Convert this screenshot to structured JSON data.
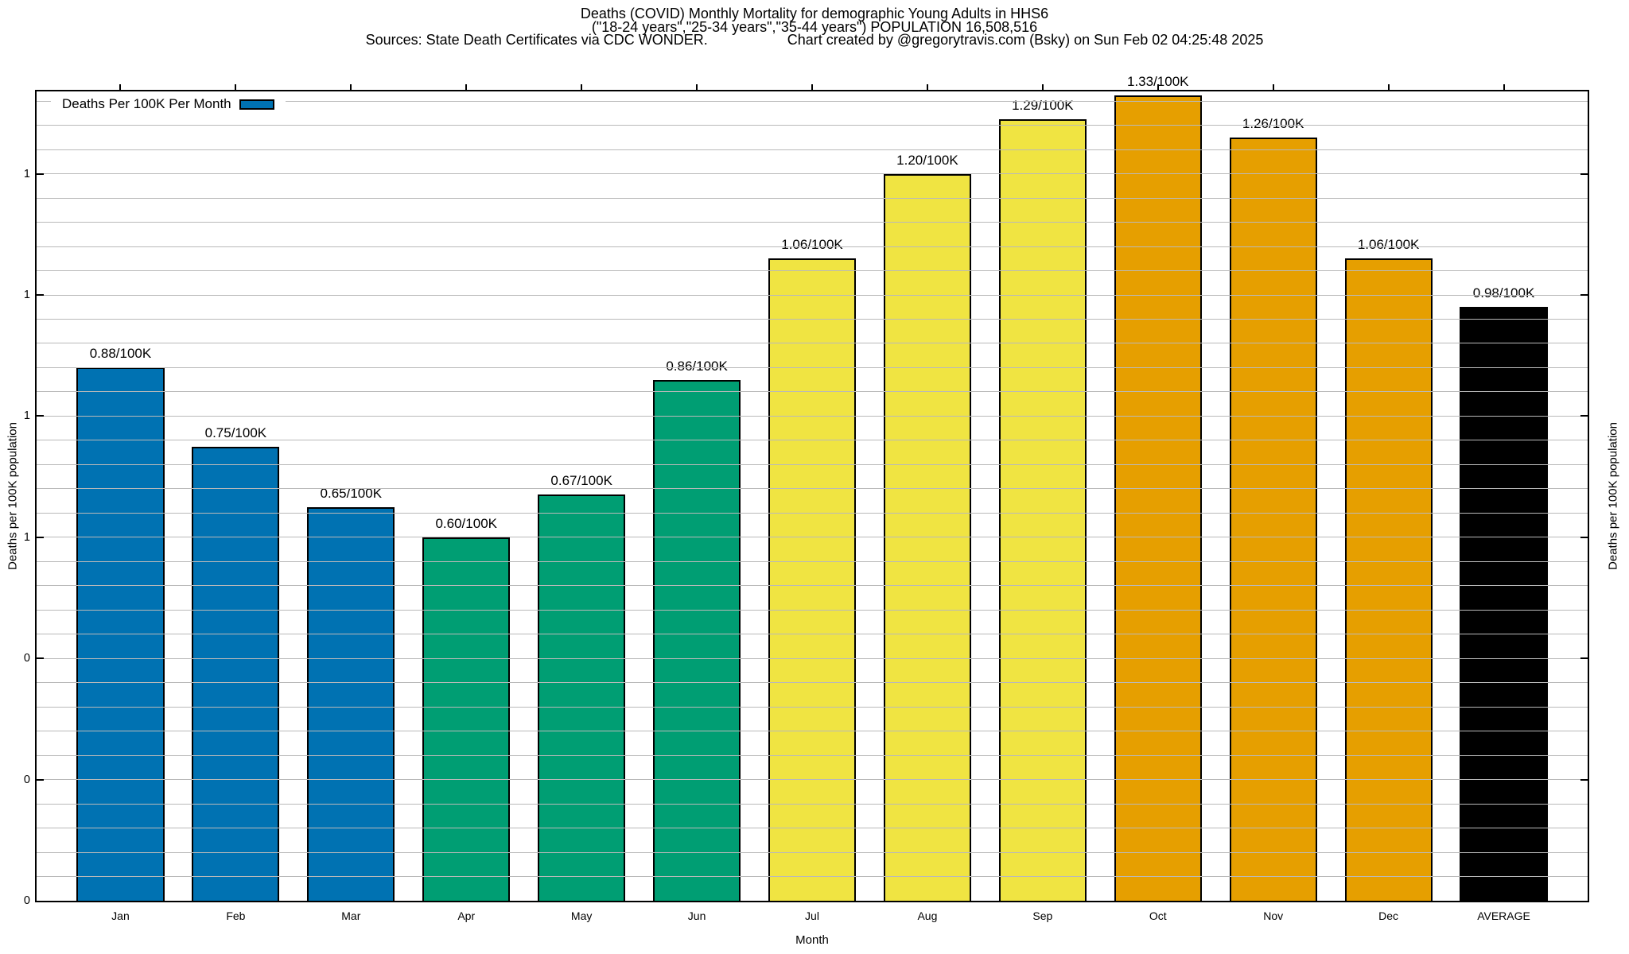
{
  "header": {
    "title_line1": "Deaths (COVID) Monthly Mortality for demographic Young Adults in HHS6",
    "title_line2": "(\"18-24 years\",\"25-34 years\",\"35-44 years\") POPULATION 16,508,516",
    "sources": "Sources: State Death Certificates via CDC WONDER.",
    "credit": "Chart created by @gregorytravis.com (Bsky) on Sun Feb 02 04:25:48 2025"
  },
  "legend": {
    "label": "Deaths Per 100K Per Month",
    "swatch_color": "#0072B2"
  },
  "axis": {
    "xlabel": "Month",
    "ylabel_left": "Deaths per 100K population",
    "ylabel_right": "Deaths per 100K population",
    "y_max": 1.336,
    "y_minor_step": 0.04,
    "y_major_step": 0.2,
    "grid_color": "#b9b9b9",
    "y_tick_labels": [
      {
        "value": 0.0,
        "label": "0"
      },
      {
        "value": 0.2,
        "label": "0"
      },
      {
        "value": 0.4,
        "label": "0"
      },
      {
        "value": 0.6,
        "label": "1"
      },
      {
        "value": 0.8,
        "label": "1"
      },
      {
        "value": 1.0,
        "label": "1"
      },
      {
        "value": 1.2,
        "label": "1"
      }
    ]
  },
  "palette": {
    "blue": "#0072B2",
    "green": "#009E73",
    "yellow": "#F0E442",
    "orange": "#E69F00",
    "black": "#000000"
  },
  "bars": [
    {
      "month": "Jan",
      "value": 0.88,
      "label": "0.88/100K",
      "color": "#0072B2"
    },
    {
      "month": "Feb",
      "value": 0.75,
      "label": "0.75/100K",
      "color": "#0072B2"
    },
    {
      "month": "Mar",
      "value": 0.65,
      "label": "0.65/100K",
      "color": "#0072B2"
    },
    {
      "month": "Apr",
      "value": 0.6,
      "label": "0.60/100K",
      "color": "#009E73"
    },
    {
      "month": "May",
      "value": 0.67,
      "label": "0.67/100K",
      "color": "#009E73"
    },
    {
      "month": "Jun",
      "value": 0.86,
      "label": "0.86/100K",
      "color": "#009E73"
    },
    {
      "month": "Jul",
      "value": 1.06,
      "label": "1.06/100K",
      "color": "#F0E442"
    },
    {
      "month": "Aug",
      "value": 1.2,
      "label": "1.20/100K",
      "color": "#F0E442"
    },
    {
      "month": "Sep",
      "value": 1.29,
      "label": "1.29/100K",
      "color": "#F0E442"
    },
    {
      "month": "Oct",
      "value": 1.33,
      "label": "1.33/100K",
      "color": "#E69F00"
    },
    {
      "month": "Nov",
      "value": 1.26,
      "label": "1.26/100K",
      "color": "#E69F00"
    },
    {
      "month": "Dec",
      "value": 1.06,
      "label": "1.06/100K",
      "color": "#E69F00"
    },
    {
      "month": "AVERAGE",
      "value": 0.98,
      "label": "0.98/100K",
      "color": "#000000"
    }
  ],
  "chart_data": {
    "type": "bar",
    "title": "Deaths (COVID) Monthly Mortality for demographic Young Adults in HHS6",
    "subtitle": "(\"18-24 years\",\"25-34 years\",\"35-44 years\") POPULATION 16,508,516",
    "categories": [
      "Jan",
      "Feb",
      "Mar",
      "Apr",
      "May",
      "Jun",
      "Jul",
      "Aug",
      "Sep",
      "Oct",
      "Nov",
      "Dec",
      "AVERAGE"
    ],
    "values": [
      0.88,
      0.75,
      0.65,
      0.6,
      0.67,
      0.86,
      1.06,
      1.2,
      1.29,
      1.33,
      1.26,
      1.06,
      0.98
    ],
    "bar_colors": [
      "#0072B2",
      "#0072B2",
      "#0072B2",
      "#009E73",
      "#009E73",
      "#009E73",
      "#F0E442",
      "#F0E442",
      "#F0E442",
      "#E69F00",
      "#E69F00",
      "#E69F00",
      "#000000"
    ],
    "data_labels": [
      "0.88/100K",
      "0.75/100K",
      "0.65/100K",
      "0.60/100K",
      "0.67/100K",
      "0.86/100K",
      "1.06/100K",
      "1.20/100K",
      "1.29/100K",
      "1.33/100K",
      "1.26/100K",
      "1.06/100K",
      "0.98/100K"
    ],
    "series_name": "Deaths Per 100K Per Month",
    "xlabel": "Month",
    "ylabel": "Deaths per 100K population",
    "ylim": [
      0,
      1.336
    ],
    "grid": "horizontal-minor",
    "legend_position": "top-left-inside"
  }
}
